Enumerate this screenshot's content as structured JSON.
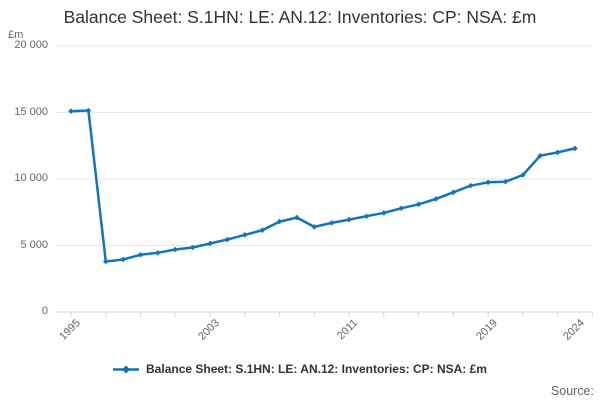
{
  "header": {
    "title": "Balance Sheet: S.1HN: LE: AN.12: Inventories: CP: NSA: £m"
  },
  "y_axis": {
    "unit": "£m"
  },
  "legend": {
    "label": "Balance Sheet: S.1HN: LE: AN.12: Inventories: CP: NSA: £m"
  },
  "footer": {
    "source_label": "Source:"
  },
  "colors": {
    "line": "#1175bb",
    "gridline": "#e6e6e6",
    "axis": "#ccd6eb",
    "title_text": "#333333",
    "muted_text": "#666666"
  },
  "chart_data": {
    "type": "line",
    "title": "Balance Sheet: S.1HN: LE: AN.12: Inventories: CP: NSA: £m",
    "xlabel": "",
    "ylabel": "£m",
    "x": [
      1995,
      1996,
      1997,
      1998,
      1999,
      2000,
      2001,
      2002,
      2003,
      2004,
      2005,
      2006,
      2007,
      2008,
      2009,
      2010,
      2011,
      2012,
      2013,
      2014,
      2015,
      2016,
      2017,
      2018,
      2019,
      2020,
      2021,
      2022,
      2023,
      2024
    ],
    "series": [
      {
        "name": "Balance Sheet: S.1HN: LE: AN.12: Inventories: CP: NSA: £m",
        "color": "#1175bb",
        "values": [
          15100,
          15150,
          3800,
          3950,
          4300,
          4450,
          4700,
          4850,
          5150,
          5450,
          5800,
          6150,
          6800,
          7100,
          6400,
          6700,
          6950,
          7200,
          7450,
          7800,
          8100,
          8500,
          9000,
          9500,
          9750,
          9800,
          10300,
          11750,
          12000,
          12300
        ]
      }
    ],
    "ylim": [
      0,
      20000
    ],
    "yticks": [
      {
        "value": 20000,
        "label": "20 000"
      },
      {
        "value": 15000,
        "label": "15 000"
      },
      {
        "value": 10000,
        "label": "10 000"
      },
      {
        "value": 5000,
        "label": "5 000"
      },
      {
        "value": 0,
        "label": "0"
      }
    ],
    "x_axis": {
      "tick_start": 1995,
      "tick_end": 2025,
      "tick_step": 2,
      "labeled_ticks": [
        1995,
        2003,
        2011,
        2019,
        2024
      ]
    },
    "grid": "horizontal",
    "legend_position": "bottom"
  }
}
